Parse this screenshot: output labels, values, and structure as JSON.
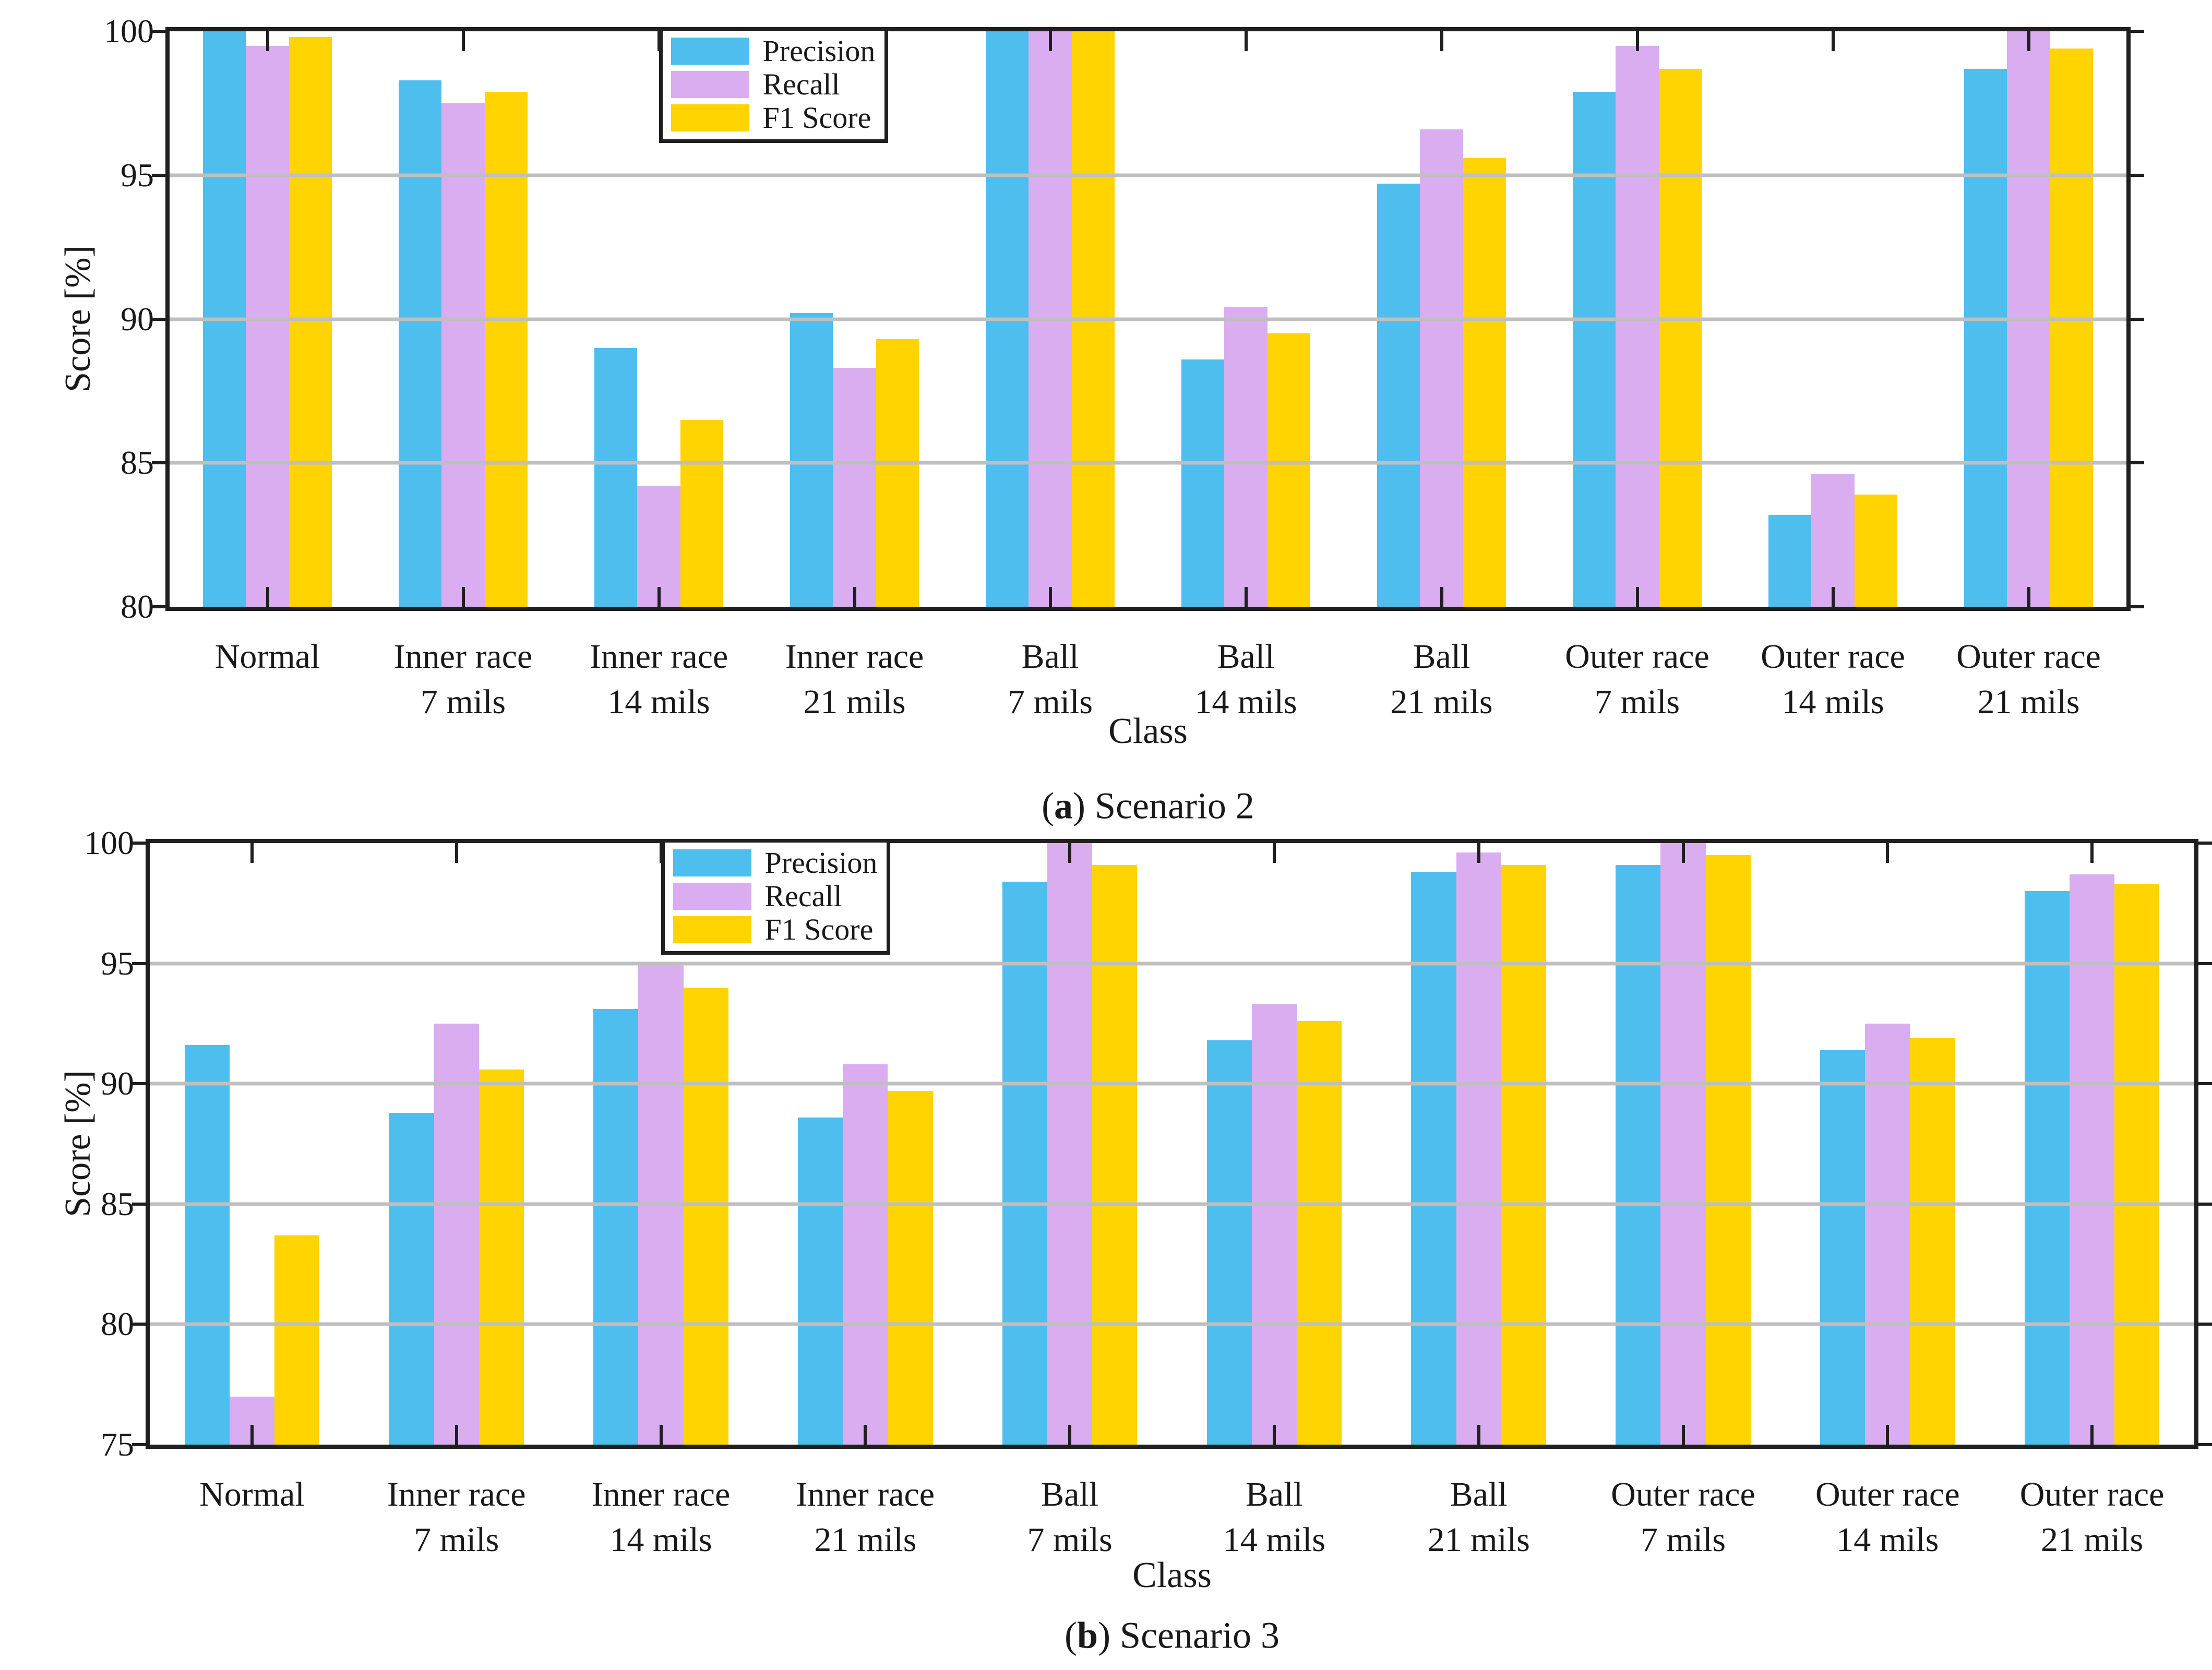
{
  "figure": {
    "background_color": "#ffffff",
    "text_color": "#191919",
    "axis_color": "#1f1f1f",
    "grid_color": "#bfbfbf"
  },
  "chart_data": [
    {
      "type": "bar",
      "caption": {
        "open": "(",
        "letter": "a",
        "close": ") ",
        "text": "Scenario 2"
      },
      "xlabel": "Class",
      "ylabel": "Score [%]",
      "ylim": [
        80,
        100
      ],
      "yticks": [
        80,
        85,
        90,
        95,
        100
      ],
      "gridlines": [
        85,
        90,
        95
      ],
      "grid": "horizontal",
      "legend_position": "top-inside-left",
      "categories": [
        "Normal",
        "Inner race 7 mils",
        "Inner race 14 mils",
        "Inner race 21 mils",
        "Ball 7 mils",
        "Ball 14 mils",
        "Ball 21 mils",
        "Outer race 7 mils",
        "Outer race 14 mils",
        "Outer race 21 mils"
      ],
      "series": [
        {
          "name": "Precision",
          "color": "#4DBEEE",
          "values": [
            100,
            98.3,
            89.0,
            90.2,
            100,
            88.6,
            94.7,
            97.9,
            83.2,
            98.7
          ]
        },
        {
          "name": "Recall",
          "color": "#D9ADF0",
          "values": [
            99.5,
            97.5,
            84.2,
            88.3,
            100,
            90.4,
            96.6,
            99.5,
            84.6,
            100
          ]
        },
        {
          "name": "F1 Score",
          "color": "#FFD400",
          "values": [
            99.8,
            97.9,
            86.5,
            89.3,
            100,
            89.5,
            95.6,
            98.7,
            83.9,
            99.4
          ]
        }
      ]
    },
    {
      "type": "bar",
      "caption": {
        "open": "(",
        "letter": "b",
        "close": ") ",
        "text": "Scenario 3"
      },
      "xlabel": "Class",
      "ylabel": "Score [%]",
      "ylim": [
        75,
        100
      ],
      "yticks": [
        75,
        80,
        85,
        90,
        95,
        100
      ],
      "gridlines": [
        80,
        85,
        90,
        95
      ],
      "grid": "horizontal",
      "legend_position": "top-inside-left",
      "categories": [
        "Normal",
        "Inner race 7 mils",
        "Inner race 14 mils",
        "Inner race 21 mils",
        "Ball 7 mils",
        "Ball 14 mils",
        "Ball 21 mils",
        "Outer race 7 mils",
        "Outer race 14 mils",
        "Outer race 21 mils"
      ],
      "series": [
        {
          "name": "Precision",
          "color": "#4DBEEE",
          "values": [
            91.6,
            88.8,
            93.1,
            88.6,
            98.4,
            91.8,
            98.8,
            99.1,
            91.4,
            98.0
          ]
        },
        {
          "name": "Recall",
          "color": "#D9ADF0",
          "values": [
            77.0,
            92.5,
            95.0,
            90.8,
            100,
            93.3,
            99.6,
            100,
            92.5,
            98.7
          ]
        },
        {
          "name": "F1 Score",
          "color": "#FFD400",
          "values": [
            83.7,
            90.6,
            94.0,
            89.7,
            99.1,
            92.6,
            99.1,
            99.5,
            91.9,
            98.3
          ]
        }
      ]
    }
  ]
}
